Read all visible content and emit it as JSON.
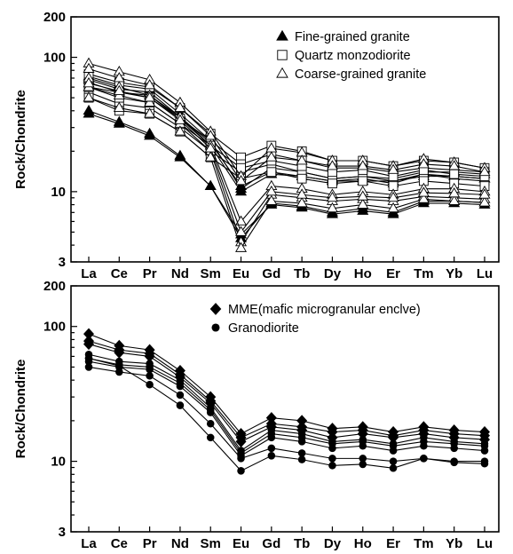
{
  "chart_data": [
    {
      "type": "line",
      "ylabel": "Rock/Chondrite",
      "y_scale": "log",
      "ylim": [
        3,
        200
      ],
      "y_ticks": [
        "200",
        "100",
        "10",
        "3"
      ],
      "categories": [
        "La",
        "Ce",
        "Pr",
        "Nd",
        "Sm",
        "Eu",
        "Gd",
        "Tb",
        "Dy",
        "Ho",
        "Er",
        "Tm",
        "Yb",
        "Lu"
      ],
      "legend_position": "top-right",
      "legend": [
        {
          "marker": "filled-triangle",
          "label": "Fine-grained granite"
        },
        {
          "marker": "open-square",
          "label": "Quartz monzodiorite"
        },
        {
          "marker": "open-triangle",
          "label": "Coarse-grained granite"
        }
      ],
      "series": [
        {
          "marker": "filled-triangle",
          "values": [
            38,
            32,
            26,
            18,
            11,
            4.5,
            8.2,
            7.8,
            7.0,
            7.5,
            7.0,
            8.5,
            8.5,
            8.3
          ]
        },
        {
          "marker": "filled-triangle",
          "values": [
            40,
            33,
            27,
            18.5,
            11,
            4.8,
            8.0,
            7.6,
            6.8,
            7.2,
            6.8,
            8.2,
            8.2,
            8.0
          ]
        },
        {
          "marker": "filled-triangle",
          "values": [
            60,
            55,
            52,
            35,
            22,
            10,
            13.5,
            13,
            12,
            12.5,
            11.5,
            13.5,
            13,
            12.5
          ]
        },
        {
          "marker": "filled-triangle",
          "values": [
            72,
            62,
            58,
            38,
            24,
            10.5,
            15,
            14,
            12.5,
            13,
            12.5,
            14,
            14,
            13.5
          ]
        },
        {
          "marker": "filled-triangle",
          "values": [
            68,
            58,
            55,
            36,
            23,
            11,
            14,
            13,
            12,
            12,
            12,
            13,
            13,
            12.5
          ]
        },
        {
          "marker": "open-square",
          "values": [
            55,
            45,
            42,
            30,
            20,
            14,
            16,
            14,
            12.5,
            13,
            12,
            13.5,
            12.5,
            12
          ]
        },
        {
          "marker": "open-square",
          "values": [
            50,
            40,
            38,
            28,
            18,
            12.5,
            14,
            12.5,
            11.5,
            12,
            11,
            12,
            11.5,
            11
          ]
        },
        {
          "marker": "open-square",
          "values": [
            75,
            65,
            60,
            42,
            27,
            18,
            22,
            20,
            17,
            17,
            15.5,
            17,
            16.5,
            15
          ]
        },
        {
          "marker": "open-square",
          "values": [
            65,
            55,
            50,
            35,
            24,
            16,
            19,
            17,
            15,
            15,
            14,
            15,
            14.5,
            14
          ]
        },
        {
          "marker": "open-square",
          "values": [
            60,
            50,
            46,
            32,
            22,
            15,
            17,
            15.5,
            14,
            14.5,
            13,
            14.5,
            13.5,
            13
          ]
        },
        {
          "marker": "open-triangle",
          "values": [
            90,
            78,
            68,
            46,
            28,
            13,
            21,
            19.5,
            17,
            17,
            15.5,
            17.5,
            16.5,
            15
          ]
        },
        {
          "marker": "open-triangle",
          "values": [
            82,
            70,
            62,
            42,
            26,
            12,
            18,
            17,
            15.5,
            15.5,
            14.5,
            16,
            15.5,
            14
          ]
        },
        {
          "marker": "open-triangle",
          "values": [
            70,
            60,
            52,
            36,
            22,
            6,
            11,
            10.5,
            9.5,
            10,
            9.5,
            10.5,
            10.5,
            10
          ]
        },
        {
          "marker": "open-triangle",
          "values": [
            60,
            52,
            46,
            32,
            20,
            4.2,
            9.5,
            9,
            8.5,
            8.8,
            8.5,
            9.2,
            9,
            8.8
          ]
        },
        {
          "marker": "open-triangle",
          "values": [
            50,
            42,
            38,
            28,
            18,
            3.8,
            8.5,
            8.2,
            7.5,
            8,
            7.5,
            8.8,
            8.5,
            8.3
          ]
        },
        {
          "marker": "open-triangle",
          "values": [
            64,
            56,
            50,
            34,
            21,
            5,
            10,
            9.5,
            9,
            9.2,
            9,
            9.8,
            9.7,
            9.5
          ]
        }
      ]
    },
    {
      "type": "line",
      "ylabel": "Rock/Chondrite",
      "y_scale": "log",
      "ylim": [
        3,
        200
      ],
      "y_ticks": [
        "200",
        "100",
        "10",
        "3"
      ],
      "categories": [
        "La",
        "Ce",
        "Pr",
        "Nd",
        "Sm",
        "Eu",
        "Gd",
        "Tb",
        "Dy",
        "Ho",
        "Er",
        "Tm",
        "Yb",
        "Lu"
      ],
      "legend_position": "top-right",
      "legend": [
        {
          "marker": "filled-diamond",
          "label": "MME(mafic microgranular enclve)"
        },
        {
          "marker": "filled-circle",
          "label": "Granodiorite"
        }
      ],
      "series": [
        {
          "marker": "filled-diamond",
          "values": [
            88,
            72,
            67,
            47,
            30,
            16,
            21,
            20,
            17.5,
            18,
            16.5,
            18,
            17,
            16.5
          ]
        },
        {
          "marker": "filled-diamond",
          "values": [
            78,
            67,
            63,
            44,
            28,
            15,
            19,
            18,
            16.5,
            17,
            15.5,
            17,
            16,
            15.5
          ]
        },
        {
          "marker": "filled-diamond",
          "values": [
            74,
            64,
            60,
            42,
            27,
            14,
            18,
            17,
            15,
            16,
            15,
            16,
            15,
            14.5
          ]
        },
        {
          "marker": "filled-circle",
          "values": [
            62,
            55,
            53,
            40,
            25,
            12,
            17,
            16,
            14,
            14.5,
            13.5,
            15,
            14,
            13.5
          ]
        },
        {
          "marker": "filled-circle",
          "values": [
            58,
            52,
            50,
            38,
            24,
            11.5,
            16,
            15,
            13.5,
            14,
            13,
            14,
            13.5,
            13
          ]
        },
        {
          "marker": "filled-circle",
          "values": [
            55,
            50,
            48,
            36,
            23,
            11,
            15,
            14,
            12.5,
            13,
            12,
            13,
            12.5,
            12
          ]
        },
        {
          "marker": "filled-circle",
          "values": [
            50,
            46,
            43,
            31,
            19,
            10.5,
            12.5,
            11.5,
            10.5,
            10.5,
            10,
            10.5,
            10,
            10
          ]
        },
        {
          "marker": "filled-circle",
          "values": [
            58,
            51,
            37,
            26,
            15,
            8.5,
            11,
            10.3,
            9.3,
            9.5,
            8.9,
            10.5,
            9.8,
            9.6
          ]
        }
      ]
    }
  ]
}
